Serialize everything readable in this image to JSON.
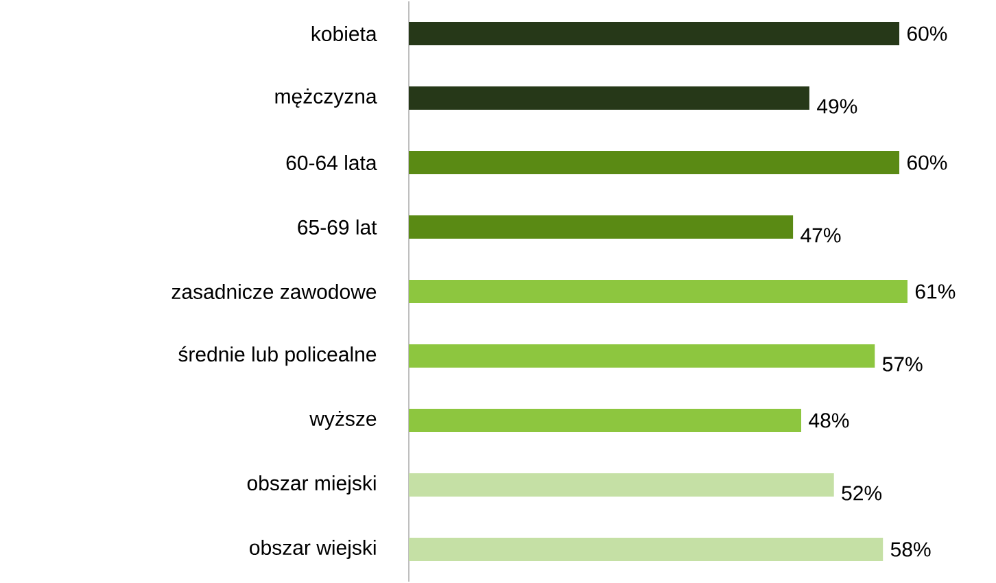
{
  "chart_data": {
    "type": "bar",
    "orientation": "horizontal",
    "categories": [
      "kobieta",
      "mężczyzna",
      "60-64 lata",
      "65-69 lat",
      "zasadnicze zawodowe",
      "średnie lub policealne",
      "wyższe",
      "obszar miejski",
      "obszar wiejski"
    ],
    "values": [
      60,
      49,
      60,
      47,
      61,
      57,
      48,
      52,
      58
    ],
    "colors": [
      "#263818",
      "#263818",
      "#5a8a14",
      "#5a8a14",
      "#8dc63f",
      "#8dc63f",
      "#8dc63f",
      "#c5e0a5",
      "#c5e0a5"
    ],
    "value_labels": [
      "60%",
      "49%",
      "60%",
      "47%",
      "61%",
      "57%",
      "48%",
      "52%",
      "58%"
    ]
  }
}
